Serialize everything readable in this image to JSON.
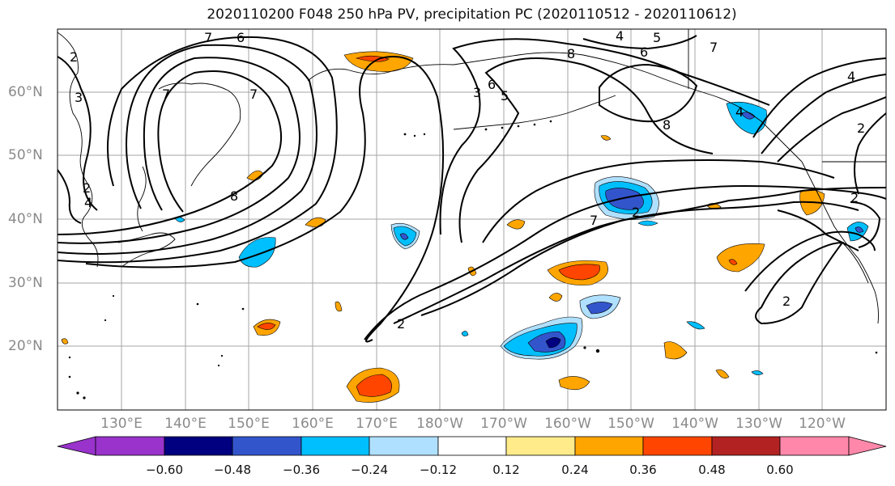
{
  "title": "2020110200 F048 250 hPa PV, precipitation PC (2020110512 - 2020110612)",
  "map": {
    "lat_labels": [
      "60°N",
      "50°N",
      "40°N",
      "30°N",
      "20°N"
    ],
    "lon_labels": [
      "130°E",
      "140°E",
      "150°E",
      "160°E",
      "170°E",
      "180°W",
      "170°W",
      "160°W",
      "150°W",
      "140°W",
      "130°W",
      "120°W"
    ],
    "background": "#ffffff",
    "coastline_color": "#000000",
    "grid_color": "#a6a6a6",
    "pv_contour_color": "#000000",
    "pv_contour_labels": [
      "2",
      "3",
      "4",
      "5",
      "6",
      "7",
      "8"
    ]
  },
  "colorbar": {
    "colors": [
      "#9933cc",
      "#000080",
      "#3355cc",
      "#00bfff",
      "#b0e0ff",
      "#ffffff",
      "#ffeb8a",
      "#ffa500",
      "#ff4500",
      "#b22222",
      "#ff88aa"
    ],
    "ticks": [
      "−0.60",
      "−0.48",
      "−0.36",
      "−0.24",
      "−0.12",
      "0.12",
      "0.24",
      "0.36",
      "0.48",
      "0.60"
    ]
  }
}
